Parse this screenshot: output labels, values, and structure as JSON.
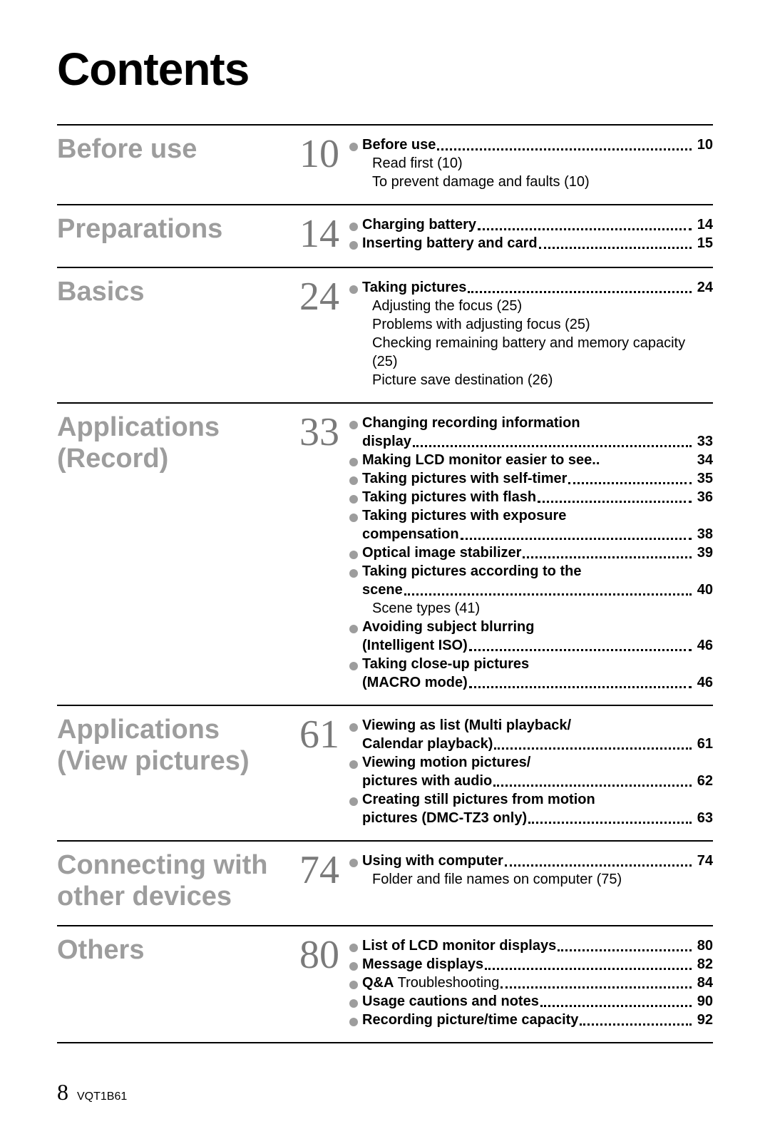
{
  "title": "Contents",
  "footer": {
    "page": "8",
    "code": "VQT1B61"
  },
  "sections": [
    {
      "name": "Before use",
      "num": "10",
      "items": [
        {
          "type": "entry",
          "label": "Before use",
          "page": "10"
        },
        {
          "type": "sub",
          "text": "Read first (10)"
        },
        {
          "type": "sub",
          "text": "To prevent damage and faults (10)"
        }
      ]
    },
    {
      "name": "Preparations",
      "num": "14",
      "items": [
        {
          "type": "entry",
          "label": "Charging battery",
          "page": "14"
        },
        {
          "type": "entry",
          "label": "Inserting battery and card",
          "page": "15"
        }
      ]
    },
    {
      "name": "Basics",
      "num": "24",
      "items": [
        {
          "type": "entry",
          "label": "Taking pictures",
          "page": "24"
        },
        {
          "type": "sub",
          "text": "Adjusting the focus (25)"
        },
        {
          "type": "sub",
          "text": "Problems with adjusting focus (25)"
        },
        {
          "type": "sub",
          "text": "Checking remaining battery and memory capacity (25)"
        },
        {
          "type": "sub",
          "text": "Picture save destination (26)"
        }
      ]
    },
    {
      "name": "Applications (Record)",
      "num": "33",
      "items": [
        {
          "type": "entry2",
          "l1": "Changing recording information",
          "l2": "display",
          "page": "33"
        },
        {
          "type": "entry",
          "label": "Making LCD monitor easier to see..",
          "page": "34",
          "nodots": true
        },
        {
          "type": "entry",
          "label": "Taking pictures with self-timer",
          "page": "35"
        },
        {
          "type": "entry",
          "label": "Taking pictures with flash",
          "page": "36"
        },
        {
          "type": "entry2",
          "l1": "Taking pictures with exposure",
          "l2": "compensation",
          "page": "38"
        },
        {
          "type": "entry",
          "label": "Optical image stabilizer",
          "page": "39"
        },
        {
          "type": "entry2",
          "l1": "Taking pictures according to the",
          "l2": "scene",
          "page": "40"
        },
        {
          "type": "sub",
          "text": "Scene types (41)"
        },
        {
          "type": "entry2",
          "l1": "Avoiding subject blurring",
          "l2": "(Intelligent ISO)",
          "page": "46"
        },
        {
          "type": "entry2",
          "l1": "Taking close-up pictures",
          "l2": "(MACRO mode)",
          "page": "46"
        }
      ]
    },
    {
      "name": "Applications (View pictures)",
      "num": "61",
      "items": [
        {
          "type": "entry2",
          "l1": "Viewing as list (Multi playback/",
          "l2": "Calendar playback)",
          "page": "61"
        },
        {
          "type": "entry2",
          "l1": "Viewing motion pictures/",
          "l2": "pictures with audio",
          "page": "62"
        },
        {
          "type": "entry2",
          "l1": "Creating still pictures from motion",
          "l2": "pictures (DMC-TZ3 only)",
          "page": "63"
        }
      ]
    },
    {
      "name": "Connecting with other devices",
      "num": "74",
      "items": [
        {
          "type": "entry",
          "label": "Using with computer",
          "page": "74"
        },
        {
          "type": "sub",
          "text": "Folder and file names on computer (75)"
        }
      ]
    },
    {
      "name": "Others",
      "num": "80",
      "items": [
        {
          "type": "entry",
          "label": "List of LCD monitor displays",
          "page": "80"
        },
        {
          "type": "entry",
          "label": "Message displays",
          "page": "82"
        },
        {
          "type": "entry-mixed",
          "bold": "Q&A",
          "rest": "  Troubleshooting",
          "page": "84"
        },
        {
          "type": "entry",
          "label": "Usage cautions and notes",
          "page": "90"
        },
        {
          "type": "entry",
          "label": "Recording picture/time capacity",
          "page": "92"
        }
      ]
    }
  ]
}
